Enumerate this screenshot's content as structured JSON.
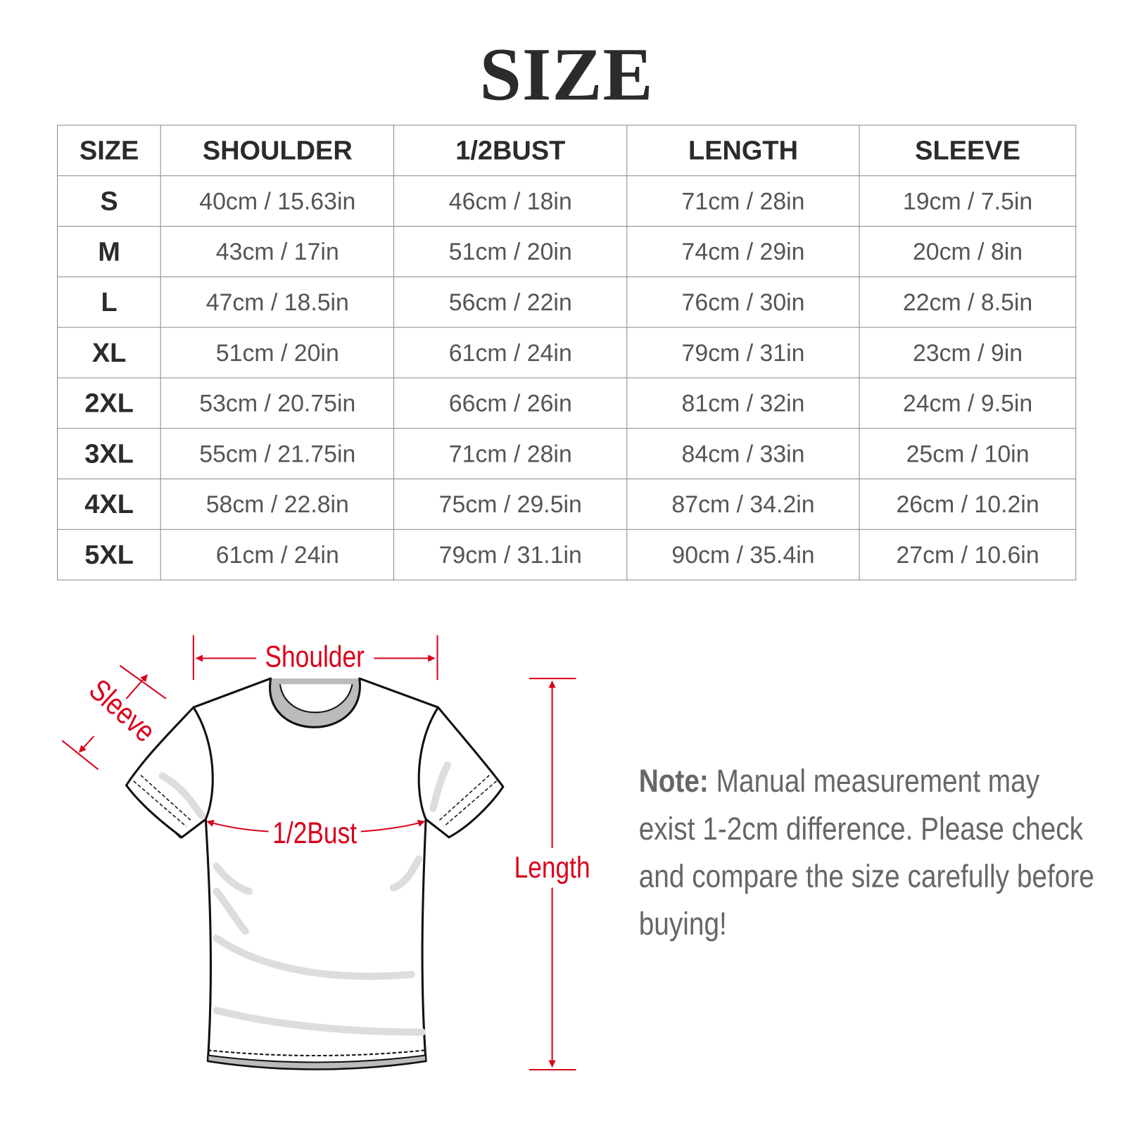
{
  "title": "SIZE",
  "table": {
    "headers": [
      "SIZE",
      "SHOULDER",
      "1/2BUST",
      "LENGTH",
      "SLEEVE"
    ],
    "rows": [
      [
        "S",
        "40cm / 15.63in",
        "46cm / 18in",
        "71cm / 28in",
        "19cm / 7.5in"
      ],
      [
        "M",
        "43cm / 17in",
        "51cm / 20in",
        "74cm / 29in",
        "20cm / 8in"
      ],
      [
        "L",
        "47cm / 18.5in",
        "56cm / 22in",
        "76cm / 30in",
        "22cm / 8.5in"
      ],
      [
        "XL",
        "51cm / 20in",
        "61cm / 24in",
        "79cm / 31in",
        "23cm / 9in"
      ],
      [
        "2XL",
        "53cm / 20.75in",
        "66cm / 26in",
        "81cm / 32in",
        "24cm / 9.5in"
      ],
      [
        "3XL",
        "55cm / 21.75in",
        "71cm / 28in",
        "84cm / 33in",
        "25cm / 10in"
      ],
      [
        "4XL",
        "58cm / 22.8in",
        "75cm / 29.5in",
        "87cm / 34.2in",
        "26cm / 10.2in"
      ],
      [
        "5XL",
        "61cm / 24in",
        "79cm / 31.1in",
        "90cm / 35.4in",
        "27cm / 10.6in"
      ]
    ]
  },
  "diagram": {
    "labels": {
      "shoulder": "Shoulder",
      "sleeve": "Sleeve",
      "bust": "1/2Bust",
      "length": "Length"
    },
    "annotation_color": "#d9001b",
    "icon": "tshirt-outline"
  },
  "note": {
    "label": "Note:",
    "text": " Manual measurement may exist 1-2cm difference. Please check and compare the size carefully before buying!"
  }
}
